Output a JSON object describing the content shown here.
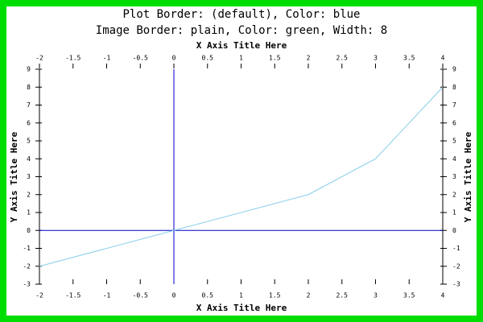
{
  "chart_data": {
    "type": "line",
    "title_lines": [
      "Plot Border: (default), Color: blue",
      "Image Border: plain, Color: green, Width: 8"
    ],
    "x_label": "X Axis Title Here",
    "y_label": "Y Axis Title Here",
    "x": [
      -2,
      0,
      2,
      3,
      4
    ],
    "series": [
      {
        "color": "#87ceeb",
        "values": [
          -2,
          0,
          2,
          4,
          8
        ]
      }
    ],
    "xlim": [
      -2,
      4
    ],
    "xticks": [
      -2,
      -1.5,
      -1,
      -0.5,
      0,
      0.5,
      1,
      1.5,
      2,
      2.5,
      3,
      3.5,
      4
    ],
    "ylim": [
      -3,
      9
    ],
    "yticks": [
      -3,
      -2,
      -1,
      0,
      1,
      2,
      3,
      4,
      5,
      6,
      7,
      8,
      9
    ],
    "border_color": "#00dd00",
    "axis_color": "#0000cc"
  }
}
